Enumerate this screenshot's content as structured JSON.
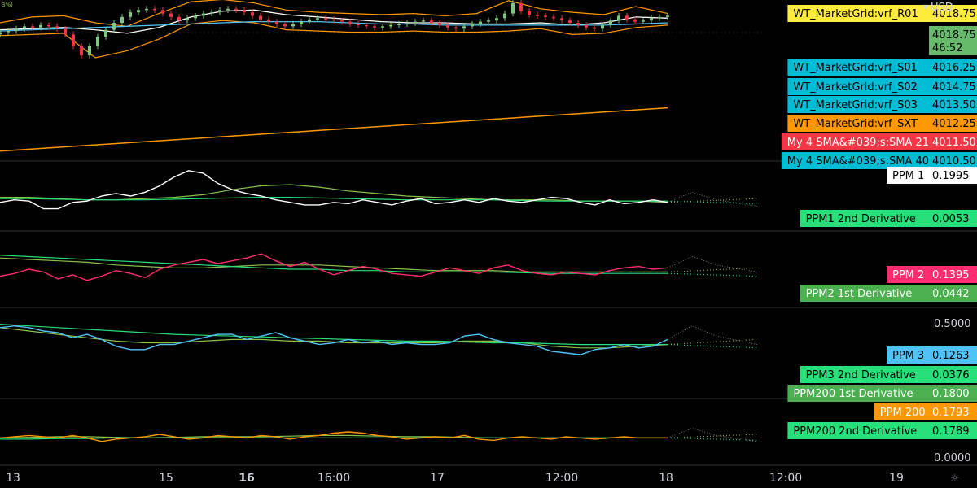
{
  "header": {
    "currency": "USD",
    "scale_hint": "3%)"
  },
  "chart_data": {
    "type": "line",
    "x_ticks": [
      "13",
      "15",
      "16",
      "16:00",
      "17",
      "12:00",
      "18",
      "12:00",
      "19"
    ],
    "bold_x_ticks": [
      "16"
    ],
    "colors": {
      "candle_up": "#81c784",
      "candle_down": "#f23645",
      "band": "#ff9800",
      "wt_yellow": "#ffeb3b",
      "wt_green": "#66bb6a",
      "wt_blue": "#00bcd4",
      "wt_orange": "#ff9800",
      "sma_red": "#f23645",
      "ppm1": "#ffffff",
      "ppm2": "#ff2d6f",
      "ppm3": "#4fc3f7",
      "ppm200": "#ff9800",
      "deriv_green": "#26e07a",
      "deriv_lightgreen": "#8bc34a"
    },
    "price_panel": {
      "ylim": [
        4008.5,
        4020.5
      ],
      "candles_close": [
        4019.0,
        4019.1,
        4019.3,
        4019.5,
        4019.4,
        4019.6,
        4019.5,
        4019.3,
        4018.8,
        4017.8,
        4017.0,
        4017.8,
        4018.6,
        4019.2,
        4019.8,
        4020.3,
        4020.7,
        4020.9,
        4021.0,
        4020.9,
        4020.6,
        4020.3,
        4020.0,
        4020.2,
        4020.4,
        4020.6,
        4020.7,
        4020.9,
        4021.0,
        4020.9,
        4020.7,
        4020.4,
        4020.1,
        4019.9,
        4019.7,
        4019.5,
        4019.7,
        4019.9,
        4020.1,
        4020.2,
        4020.1,
        4020.0,
        4019.9,
        4019.7,
        4019.6,
        4019.5,
        4019.4,
        4019.5,
        4019.6,
        4019.7,
        4019.8,
        4019.9,
        4020.0,
        4019.8,
        4019.6,
        4019.4,
        4019.3,
        4019.5,
        4019.7,
        4019.9,
        4020.0,
        4020.2,
        4020.6,
        4021.5,
        4020.8,
        4020.5,
        4020.4,
        4020.3,
        4020.2,
        4020.0,
        4019.8,
        4019.6,
        4019.4,
        4019.3,
        4019.6,
        4020.0,
        4020.4,
        4020.1,
        4019.9,
        4020.0,
        4020.2,
        4020.3,
        4020.4
      ],
      "sma_series": [
        {
          "color": "#ffffff",
          "values": [
            4019.2,
            4019.3,
            4019.4,
            4019.2,
            4018.9,
            4019.4,
            4020.3,
            4020.8,
            4020.9,
            4020.5,
            4020.3,
            4020.1,
            4019.9,
            4019.8,
            4019.8,
            4019.7,
            4019.7,
            4019.8,
            4019.6,
            4019.8,
            4020.3,
            4020.2
          ]
        },
        {
          "color": "#4fc3f7",
          "values": [
            4019.1,
            4019.2,
            4019.3,
            4019.4,
            4019.5,
            4019.6,
            4019.7,
            4019.8,
            4019.9,
            4019.9,
            4019.9,
            4019.8,
            4019.7,
            4019.7,
            4019.6,
            4019.6,
            4019.6,
            4019.6,
            4019.6,
            4019.6,
            4019.7,
            4019.8
          ]
        }
      ],
      "upper_band": [
        4019.8,
        4020.3,
        4020.4,
        4019.8,
        4019.5,
        4020.6,
        4021.6,
        4021.8,
        4021.5,
        4020.9,
        4020.7,
        4020.6,
        4020.5,
        4020.6,
        4020.4,
        4020.6,
        4021.7,
        4021.0,
        4020.7,
        4020.5,
        4021.2,
        4020.6
      ],
      "lower_band": [
        4018.7,
        4018.8,
        4018.9,
        4016.8,
        4017.4,
        4018.4,
        4019.7,
        4020.0,
        4019.8,
        4019.2,
        4019.1,
        4019.0,
        4019.0,
        4019.1,
        4019.0,
        4019.0,
        4019.1,
        4019.3,
        4018.8,
        4018.9,
        4019.4,
        4019.6
      ],
      "trend_line": {
        "start": 4008.8,
        "end": 4012.5
      }
    },
    "price_labels": [
      {
        "name": "WT_MarketGrid:vrf_R01",
        "value": "4018.75",
        "color": "#ffeb3b",
        "text_color": "#000000"
      },
      {
        "name": "",
        "value": "4018.75",
        "sub": "46:52",
        "color": "#66bb6a",
        "text_color": "#000000"
      },
      {
        "name": "WT_MarketGrid:vrf_S01",
        "value": "4016.25",
        "color": "#00bcd4",
        "text_color": "#000000"
      },
      {
        "name": "WT_MarketGrid:vrf_S02",
        "value": "4014.75",
        "color": "#00bcd4",
        "text_color": "#000000"
      },
      {
        "name": "WT_MarketGrid:vrf_S03",
        "value": "4013.50",
        "color": "#00bcd4",
        "text_color": "#000000"
      },
      {
        "name": "WT_MarketGrid:vrf_SXT",
        "value": "4012.25",
        "color": "#ff9800",
        "text_color": "#000000"
      },
      {
        "name": "My 4 SMA&#039;s:SMA 21",
        "value": "4011.50",
        "color": "#f23645",
        "text_color": "#ffffff"
      },
      {
        "name": "My 4 SMA&#039;s:SMA 40",
        "value": "4010.50",
        "color": "#00bcd4",
        "text_color": "#000000"
      }
    ],
    "panels": [
      {
        "ylim": [
          0.0,
          0.5
        ],
        "main": {
          "color": "#ffffff",
          "values": [
            0.2,
            0.22,
            0.21,
            0.15,
            0.15,
            0.2,
            0.21,
            0.25,
            0.27,
            0.25,
            0.28,
            0.33,
            0.4,
            0.45,
            0.43,
            0.35,
            0.3,
            0.27,
            0.25,
            0.22,
            0.2,
            0.18,
            0.18,
            0.2,
            0.19,
            0.22,
            0.2,
            0.18,
            0.21,
            0.23,
            0.19,
            0.2,
            0.22,
            0.2,
            0.23,
            0.21,
            0.2,
            0.22,
            0.24,
            0.23,
            0.2,
            0.18,
            0.22,
            0.19,
            0.2,
            0.22,
            0.2
          ]
        },
        "deriv": [
          {
            "color": "#8bc34a",
            "values": [
              0.24,
              0.24,
              0.23,
              0.22,
              0.22,
              0.23,
              0.24,
              0.26,
              0.3,
              0.33,
              0.34,
              0.32,
              0.29,
              0.27,
              0.25,
              0.24,
              0.23,
              0.22,
              0.22,
              0.22,
              0.21,
              0.21,
              0.21,
              0.2
            ]
          },
          {
            "color": "#26e07a",
            "values": [
              0.23,
              0.23,
              0.225,
              0.22,
              0.22,
              0.22,
              0.225,
              0.23,
              0.235,
              0.24,
              0.24,
              0.235,
              0.23,
              0.225,
              0.22,
              0.22,
              0.22,
              0.22,
              0.215,
              0.21,
              0.21,
              0.21,
              0.21,
              0.21
            ]
          }
        ],
        "labels": [
          {
            "name": "PPM 1",
            "value": "0.1995",
            "color": "#ffffff",
            "text_color": "#000000"
          },
          {
            "name": "PPM1 2nd Derivative",
            "value": "0.0053",
            "color": "#26e07a",
            "text_color": "#000000"
          }
        ]
      },
      {
        "ylim": [
          0.0,
          0.5
        ],
        "main": {
          "color": "#ff2d6f",
          "values": [
            0.2,
            0.22,
            0.25,
            0.23,
            0.18,
            0.21,
            0.17,
            0.2,
            0.24,
            0.22,
            0.19,
            0.25,
            0.28,
            0.3,
            0.32,
            0.29,
            0.31,
            0.33,
            0.36,
            0.31,
            0.27,
            0.3,
            0.25,
            0.21,
            0.24,
            0.27,
            0.25,
            0.22,
            0.21,
            0.2,
            0.23,
            0.26,
            0.24,
            0.22,
            0.26,
            0.28,
            0.24,
            0.22,
            0.21,
            0.23,
            0.22,
            0.21,
            0.24,
            0.26,
            0.27,
            0.25,
            0.26
          ]
        },
        "deriv": [
          {
            "color": "#8bc34a",
            "values": [
              0.33,
              0.32,
              0.31,
              0.3,
              0.28,
              0.27,
              0.26,
              0.26,
              0.27,
              0.28,
              0.28,
              0.28,
              0.27,
              0.26,
              0.25,
              0.24,
              0.24,
              0.24,
              0.23,
              0.23,
              0.23,
              0.23,
              0.23,
              0.23
            ]
          },
          {
            "color": "#26e07a",
            "values": [
              0.35,
              0.34,
              0.33,
              0.32,
              0.31,
              0.3,
              0.29,
              0.28,
              0.27,
              0.26,
              0.25,
              0.25,
              0.24,
              0.24,
              0.23,
              0.23,
              0.23,
              0.23,
              0.225,
              0.22,
              0.22,
              0.22,
              0.22,
              0.22
            ]
          }
        ],
        "labels": [
          {
            "name": "PPM 2",
            "value": "0.1395",
            "color": "#ff2d6f",
            "text_color": "#ffffff"
          },
          {
            "name": "PPM2 1st Derivative",
            "value": "0.0442",
            "color": "#4caf50",
            "text_color": "#ffffff"
          }
        ]
      },
      {
        "ylim": [
          0.0,
          0.5
        ],
        "main": {
          "color": "#4fc3f7",
          "values": [
            0.4,
            0.41,
            0.4,
            0.38,
            0.37,
            0.34,
            0.36,
            0.33,
            0.29,
            0.27,
            0.27,
            0.3,
            0.3,
            0.32,
            0.34,
            0.36,
            0.36,
            0.33,
            0.35,
            0.37,
            0.34,
            0.32,
            0.3,
            0.31,
            0.33,
            0.31,
            0.32,
            0.3,
            0.31,
            0.3,
            0.3,
            0.31,
            0.35,
            0.36,
            0.33,
            0.31,
            0.3,
            0.29,
            0.26,
            0.25,
            0.24,
            0.27,
            0.28,
            0.3,
            0.28,
            0.29,
            0.33
          ]
        },
        "deriv": [
          {
            "color": "#8bc34a",
            "values": [
              0.4,
              0.38,
              0.36,
              0.34,
              0.32,
              0.31,
              0.31,
              0.32,
              0.33,
              0.33,
              0.32,
              0.32,
              0.31,
              0.31,
              0.31,
              0.31,
              0.32,
              0.32,
              0.31,
              0.29,
              0.28,
              0.28,
              0.29,
              0.3
            ]
          },
          {
            "color": "#26e07a",
            "values": [
              0.42,
              0.41,
              0.4,
              0.39,
              0.38,
              0.37,
              0.36,
              0.355,
              0.35,
              0.345,
              0.34,
              0.335,
              0.33,
              0.325,
              0.32,
              0.32,
              0.315,
              0.31,
              0.31,
              0.305,
              0.3,
              0.3,
              0.3,
              0.3
            ]
          }
        ],
        "labels": [
          {
            "name": "PPM 3",
            "value": "0.1263",
            "color": "#4fc3f7",
            "text_color": "#000000"
          },
          {
            "name": "PPM3 2nd Derivative",
            "value": "0.0376",
            "color": "#26e07a",
            "text_color": "#000000"
          }
        ]
      },
      {
        "ylim": [
          0.0,
          0.5
        ],
        "main": {
          "color": "#ff9800",
          "values": [
            0.2,
            0.21,
            0.22,
            0.21,
            0.2,
            0.22,
            0.2,
            0.17,
            0.19,
            0.2,
            0.21,
            0.23,
            0.21,
            0.19,
            0.2,
            0.22,
            0.21,
            0.2,
            0.22,
            0.21,
            0.19,
            0.21,
            0.22,
            0.24,
            0.25,
            0.24,
            0.22,
            0.21,
            0.19,
            0.2,
            0.21,
            0.2,
            0.22,
            0.19,
            0.18,
            0.2,
            0.21,
            0.2,
            0.19,
            0.21,
            0.2,
            0.19,
            0.2,
            0.21,
            0.2,
            0.2,
            0.2
          ]
        },
        "deriv": [
          {
            "color": "#8bc34a",
            "values": [
              0.2,
              0.205,
              0.21,
              0.21,
              0.205,
              0.2,
              0.205,
              0.21,
              0.21,
              0.21,
              0.215,
              0.22,
              0.22,
              0.215,
              0.21,
              0.21,
              0.205,
              0.2,
              0.2,
              0.2,
              0.2,
              0.2,
              0.2,
              0.2
            ]
          },
          {
            "color": "#26e07a",
            "values": [
              0.19,
              0.19,
              0.195,
              0.195,
              0.2,
              0.2,
              0.2,
              0.2,
              0.2,
              0.2,
              0.2,
              0.2,
              0.2,
              0.2,
              0.2,
              0.2,
              0.2,
              0.2,
              0.2,
              0.2,
              0.2,
              0.2,
              0.2,
              0.2
            ]
          }
        ],
        "labels": [
          {
            "name": "PPM200 1st Derivative",
            "value": "0.1800",
            "color": "#4caf50",
            "text_color": "#ffffff"
          },
          {
            "name": "PPM 200",
            "value": "0.1793",
            "color": "#ff9800",
            "text_color": "#ffffff"
          },
          {
            "name": "PPM200 2nd Derivative",
            "value": "0.1789",
            "color": "#26e07a",
            "text_color": "#000000"
          }
        ]
      }
    ],
    "axis_values": [
      "0.5000",
      "0.0000"
    ]
  }
}
